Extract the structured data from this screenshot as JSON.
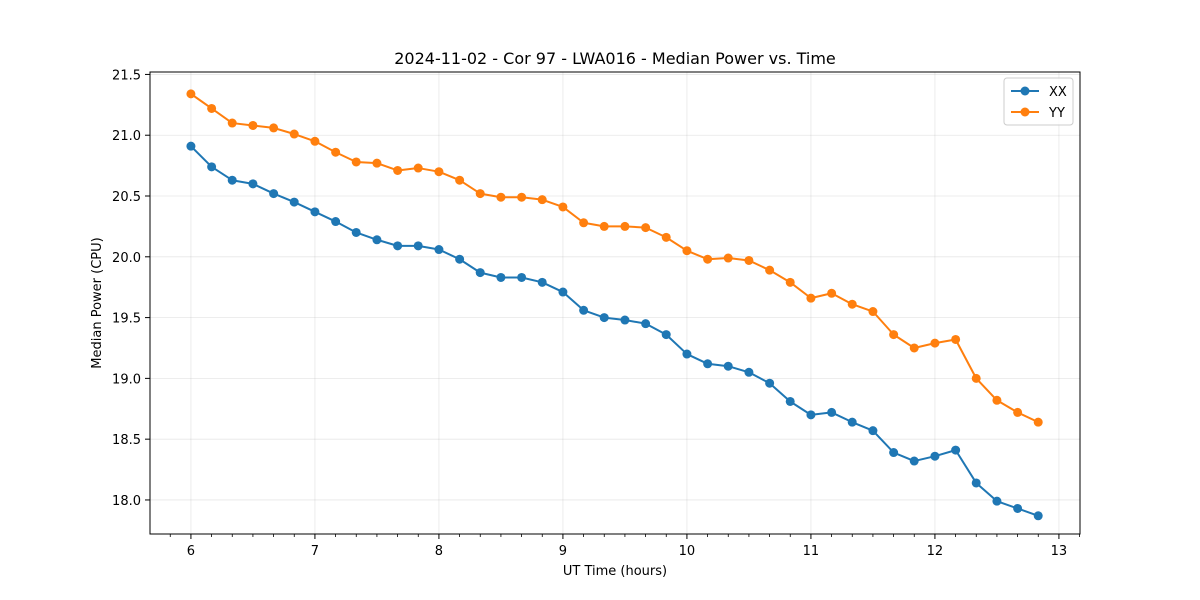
{
  "chart_data": {
    "type": "line",
    "title": "2024-11-02 - Cor 97 - LWA016 - Median Power vs. Time",
    "xlabel": "UT Time (hours)",
    "ylabel": "Median Power (CPU)",
    "xlim": [
      5.67,
      13.17
    ],
    "ylim": [
      17.72,
      21.52
    ],
    "xticks": [
      6,
      7,
      8,
      9,
      10,
      11,
      12,
      13
    ],
    "xtick_labels": [
      "6",
      "7",
      "8",
      "9",
      "10",
      "11",
      "12",
      "13"
    ],
    "yticks": [
      18.0,
      18.5,
      19.0,
      19.5,
      20.0,
      20.5,
      21.0,
      21.5
    ],
    "ytick_labels": [
      "18.0",
      "18.5",
      "19.0",
      "19.5",
      "20.0",
      "20.5",
      "21.0",
      "21.5"
    ],
    "grid": true,
    "legend_position": "top-right",
    "x": [
      6.0,
      6.167,
      6.333,
      6.5,
      6.667,
      6.833,
      7.0,
      7.167,
      7.333,
      7.5,
      7.667,
      7.833,
      8.0,
      8.167,
      8.333,
      8.5,
      8.667,
      8.833,
      9.0,
      9.167,
      9.333,
      9.5,
      9.667,
      9.833,
      10.0,
      10.167,
      10.333,
      10.5,
      10.667,
      10.833,
      11.0,
      11.167,
      11.333,
      11.5,
      11.667,
      11.833,
      12.0,
      12.167,
      12.333,
      12.5,
      12.667,
      12.833
    ],
    "series": [
      {
        "name": "XX",
        "color": "#1f77b4",
        "values": [
          20.91,
          20.74,
          20.63,
          20.6,
          20.52,
          20.45,
          20.37,
          20.29,
          20.2,
          20.14,
          20.09,
          20.09,
          20.06,
          19.98,
          19.87,
          19.83,
          19.83,
          19.79,
          19.71,
          19.56,
          19.5,
          19.48,
          19.45,
          19.36,
          19.2,
          19.12,
          19.1,
          19.05,
          18.96,
          18.81,
          18.7,
          18.72,
          18.64,
          18.57,
          18.39,
          18.32,
          18.36,
          18.41,
          18.14,
          17.99,
          17.93,
          17.87
        ]
      },
      {
        "name": "YY",
        "color": "#ff7f0e",
        "values": [
          21.34,
          21.22,
          21.1,
          21.08,
          21.06,
          21.01,
          20.95,
          20.86,
          20.78,
          20.77,
          20.71,
          20.73,
          20.7,
          20.63,
          20.52,
          20.49,
          20.49,
          20.47,
          20.41,
          20.28,
          20.25,
          20.25,
          20.24,
          20.16,
          20.05,
          19.98,
          19.99,
          19.97,
          19.89,
          19.79,
          19.66,
          19.7,
          19.61,
          19.55,
          19.36,
          19.25,
          19.29,
          19.32,
          19.0,
          18.82,
          18.72,
          18.64
        ]
      }
    ]
  }
}
